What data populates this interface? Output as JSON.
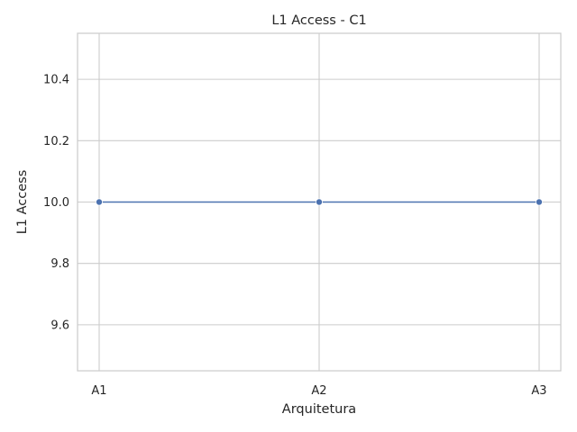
{
  "chart_data": {
    "type": "line",
    "title": "L1 Access - C1",
    "xlabel": "Arquitetura",
    "ylabel": "L1 Access",
    "categories": [
      "A1",
      "A2",
      "A3"
    ],
    "series": [
      {
        "values": [
          10.0,
          10.0,
          10.0
        ],
        "color": "#4c72b0"
      }
    ],
    "ylim": [
      9.45,
      10.55
    ],
    "yticks": [
      9.6,
      9.8,
      10.0,
      10.2,
      10.4
    ],
    "ytick_labels": [
      "9.6",
      "9.8",
      "10.0",
      "10.2",
      "10.4"
    ],
    "grid": true,
    "legend": "none",
    "colors": {
      "grid": "#cccccc",
      "frame": "#cccccc",
      "text": "#262626"
    }
  }
}
